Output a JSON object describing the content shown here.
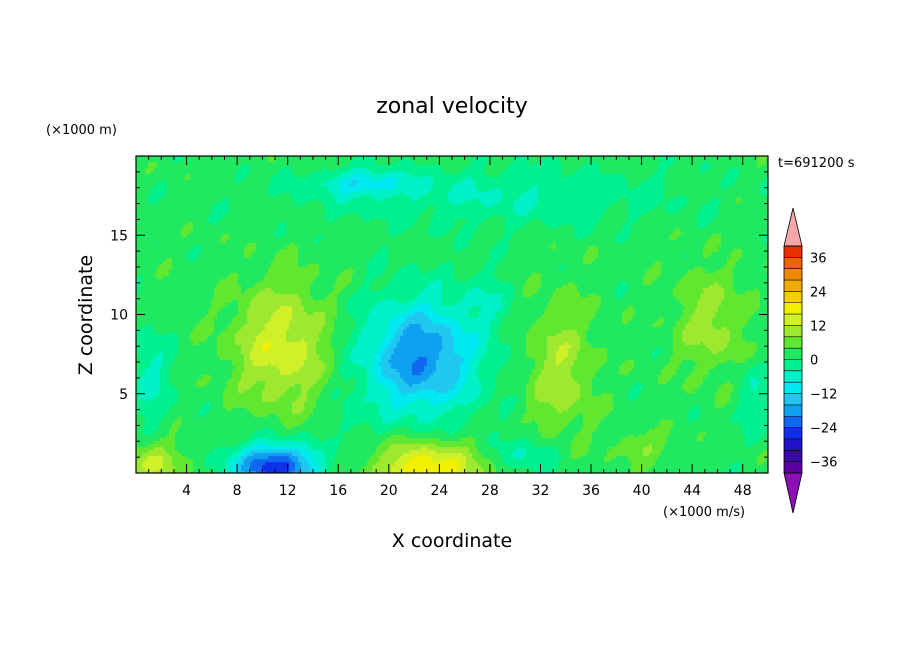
{
  "chart_data": {
    "type": "heatmap",
    "title": "zonal velocity",
    "xlabel": "X coordinate",
    "ylabel": "Z coordinate",
    "x_unit_label": "(×1000 m/s)",
    "y_unit_label": "(×1000 m)",
    "time_label": "t=691200 s",
    "xlim": [
      0,
      50
    ],
    "ylim": [
      0,
      20
    ],
    "x_ticks": [
      4,
      8,
      12,
      16,
      20,
      24,
      28,
      32,
      36,
      40,
      44,
      48
    ],
    "y_ticks": [
      5,
      10,
      15
    ],
    "colorbar": {
      "min": -40,
      "max": 40,
      "step": 4,
      "tick_values": [
        36,
        24,
        12,
        0,
        -12,
        -24,
        -36
      ],
      "tick_labels": [
        "36",
        "24",
        "12",
        "0",
        "−12",
        "−24",
        "−36"
      ],
      "over_color": "#f4a8a8",
      "under_color": "#8c10b4",
      "colors": [
        "#5a00a0",
        "#3a0aa0",
        "#2010c8",
        "#1030e8",
        "#1068f0",
        "#10a0f0",
        "#20c8f0",
        "#00e8f0",
        "#00f0c8",
        "#00f090",
        "#20e860",
        "#60e830",
        "#9ee830",
        "#d0f028",
        "#f0f000",
        "#f0d000",
        "#f0ac00",
        "#f08800",
        "#f06000",
        "#e83000"
      ]
    },
    "features": [
      {
        "x": 11,
        "z": 0.4,
        "value": -30,
        "sx": 3.2,
        "sz": 1.4
      },
      {
        "x": 11.5,
        "z": 8.0,
        "value": 13,
        "sx": 3.8,
        "sz": 3.8
      },
      {
        "x": 22.5,
        "z": 7.3,
        "value": -22,
        "sx": 4.5,
        "sz": 3.6
      },
      {
        "x": 23,
        "z": 0.2,
        "value": 18,
        "sx": 4.2,
        "sz": 1.8
      },
      {
        "x": 33.5,
        "z": 6.5,
        "value": 9,
        "sx": 2.6,
        "sz": 4.2
      },
      {
        "x": 45.5,
        "z": 9.5,
        "value": 8,
        "sx": 2.8,
        "sz": 3.2
      },
      {
        "x": 1.5,
        "z": 0.6,
        "value": 10,
        "sx": 2.5,
        "sz": 1.3
      },
      {
        "x": 40,
        "z": 1.6,
        "value": 6,
        "sx": 2.0,
        "sz": 1.0
      },
      {
        "x": 31,
        "z": 1.2,
        "value": -7,
        "sx": 2.6,
        "sz": 1.2
      },
      {
        "x": 18,
        "z": 18.3,
        "value": -11,
        "sx": 3.5,
        "sz": 0.8
      },
      {
        "x": 28,
        "z": 17.5,
        "value": -6,
        "sx": 14,
        "sz": 1.8
      },
      {
        "x": 1.2,
        "z": 6.0,
        "value": -7,
        "sx": 1.6,
        "sz": 3.0
      },
      {
        "x": 48.8,
        "z": 5.0,
        "value": -5,
        "sx": 1.4,
        "sz": 2.5
      },
      {
        "x": 28,
        "z": 11.0,
        "value": -4,
        "sx": 2.0,
        "sz": 2.0
      },
      {
        "x": 17,
        "z": 3.2,
        "value": -3,
        "sx": 1.5,
        "sz": 1.5
      }
    ]
  }
}
